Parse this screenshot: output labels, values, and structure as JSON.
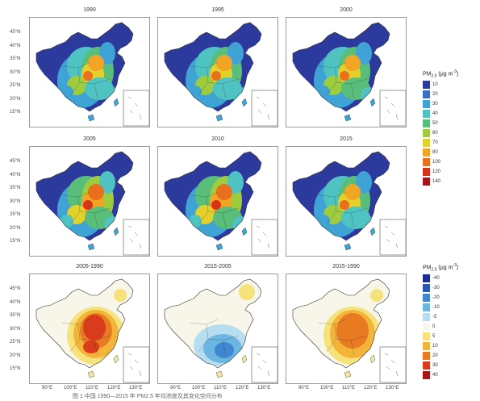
{
  "panels": [
    {
      "title": "1990",
      "type": "abs",
      "level": 1.0
    },
    {
      "title": "1995",
      "type": "abs",
      "level": 1.05
    },
    {
      "title": "2000",
      "type": "abs",
      "level": 1.1
    },
    {
      "title": "2005",
      "type": "abs",
      "level": 1.25
    },
    {
      "title": "2010",
      "type": "abs",
      "level": 1.25
    },
    {
      "title": "2015",
      "type": "abs",
      "level": 1.05
    },
    {
      "title": "2005-1990",
      "type": "diff",
      "sign": "pos"
    },
    {
      "title": "2015-2005",
      "type": "diff",
      "sign": "neg"
    },
    {
      "title": "2015-1990",
      "type": "diff",
      "sign": "pos2"
    }
  ],
  "lat_labels": [
    "45°N",
    "40°N",
    "35°N",
    "30°N",
    "25°N",
    "20°N",
    "15°N"
  ],
  "lon_labels": [
    "90°E",
    "100°E",
    "110°E",
    "120°E",
    "130°E"
  ],
  "legend_top": {
    "title": "PM",
    "sub": "2.5",
    "unit": " (μg m",
    "sup": "-3",
    "close": ")",
    "ticks": [
      "10",
      "20",
      "30",
      "40",
      "50",
      "60",
      "70",
      "80",
      "100",
      "120",
      "140"
    ],
    "colors": [
      "#2b3a9c",
      "#3a6fc4",
      "#3fa3d6",
      "#4fc3c2",
      "#58be7a",
      "#9dcc3f",
      "#e3d02a",
      "#f2a524",
      "#ea6f1c",
      "#d9321b",
      "#a3171b"
    ]
  },
  "legend_bottom": {
    "title": "PM",
    "sub": "2.5",
    "unit": " (μg m",
    "sup": "-3",
    "close": ")",
    "ticks": [
      "-40",
      "-30",
      "-20",
      "-10",
      "-5",
      "0",
      "5",
      "10",
      "20",
      "30",
      "40"
    ],
    "colors": [
      "#1f2f8f",
      "#2c56b0",
      "#3f87cf",
      "#6cb6e2",
      "#b7def0",
      "#f7f7ee",
      "#f6e27a",
      "#f3b43a",
      "#e87a22",
      "#d93c1c",
      "#a8141a"
    ]
  },
  "caption": "图 1 中国 1990—2015 年 PM2.5 年均浓度及其变化空间分布"
}
